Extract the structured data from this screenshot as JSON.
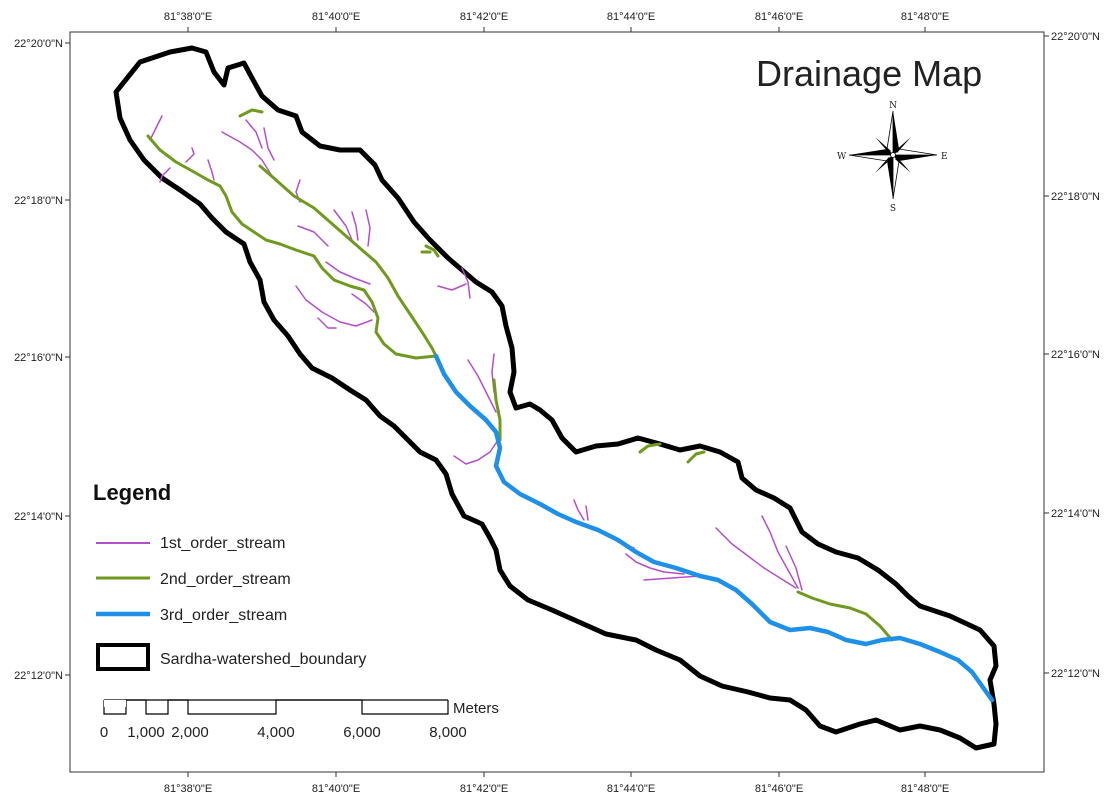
{
  "map": {
    "title": "Drainage Map",
    "lon_ticks": [
      "81°38'0\"E",
      "81°40'0\"E",
      "81°42'0\"E",
      "81°44'0\"E",
      "81°46'0\"E",
      "81°48'0\"E"
    ],
    "lat_ticks": [
      "22°20'0\"N",
      "22°18'0\"N",
      "22°16'0\"N",
      "22°14'0\"N",
      "22°12'0\"N"
    ]
  },
  "compass": {
    "n": "N",
    "s": "S",
    "e": "E",
    "w": "W"
  },
  "legend": {
    "title": "Legend",
    "items": [
      {
        "label": "1st_order_stream",
        "color": "#b44fc8"
      },
      {
        "label": "2nd_order_stream",
        "color": "#6f9a1e"
      },
      {
        "label": "3rd_order_stream",
        "color": "#1e90e8"
      },
      {
        "label": "Sardha-watershed_boundary",
        "color": "#000000"
      }
    ]
  },
  "scale_bar": {
    "unit": "Meters",
    "labels": [
      "0",
      "1,000",
      "2,000",
      "4,000",
      "6,000",
      "8,000"
    ]
  }
}
